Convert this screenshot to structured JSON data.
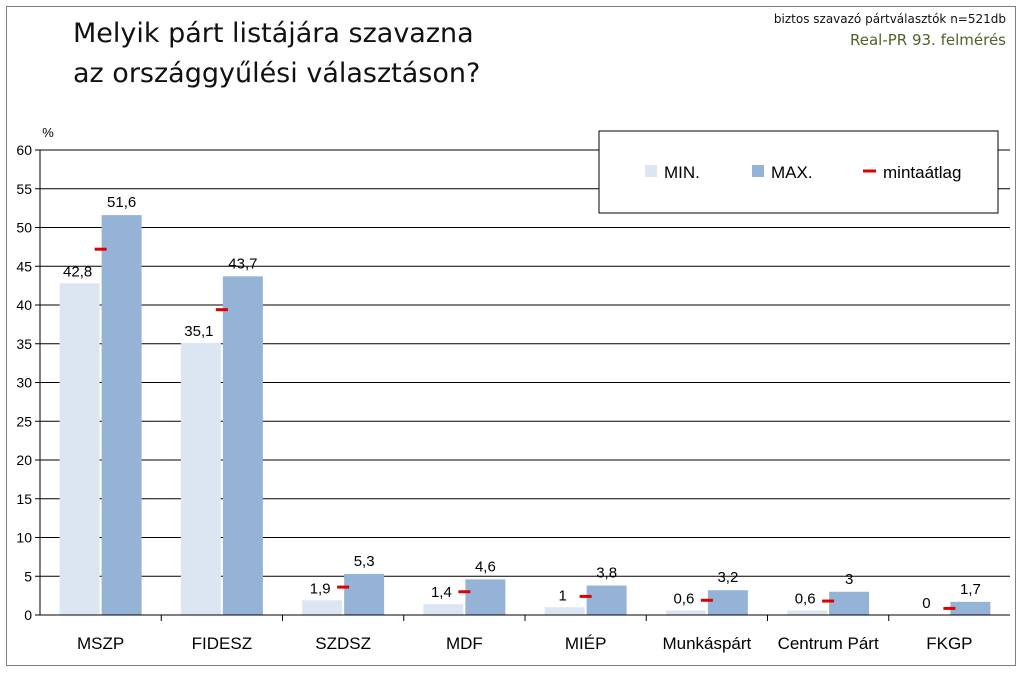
{
  "header": {
    "title": "Melyik párt listájára szavazna\naz országgyűlési választáson?",
    "source_line1": "biztos szavazó pártválasztók n=521db",
    "source_line2": "Real-PR 93. felmérés"
  },
  "colors": {
    "min": "#dce6f2",
    "max": "#95b3d7",
    "avg": "#e00000",
    "grid": "#000000"
  },
  "chart_data": {
    "type": "bar",
    "ylabel": "%",
    "ylim": [
      0,
      60
    ],
    "ytick_step": 5,
    "ytick_labels": [
      "0",
      "5",
      "10",
      "15",
      "20",
      "25",
      "30",
      "35",
      "40",
      "45",
      "50",
      "55",
      "60"
    ],
    "grid": true,
    "legend_position": "top-right",
    "categories": [
      "MSZP",
      "FIDESZ",
      "SZDSZ",
      "MDF",
      "MIÉP",
      "Munkáspárt",
      "Centrum Párt",
      "FKGP"
    ],
    "series": [
      {
        "name": "MIN.",
        "values": [
          42.8,
          35.1,
          1.9,
          1.4,
          1,
          0.6,
          0.6,
          0
        ],
        "labels": [
          "42,8",
          "35,1",
          "1,9",
          "1,4",
          "1",
          "0,6",
          "0,6",
          "0"
        ]
      },
      {
        "name": "MAX.",
        "values": [
          51.6,
          43.7,
          5.3,
          4.6,
          3.8,
          3.2,
          3,
          1.7
        ],
        "labels": [
          "51,6",
          "43,7",
          "5,3",
          "4,6",
          "3,8",
          "3,2",
          "3",
          "1,7"
        ]
      },
      {
        "name": "mintaátlag",
        "values": [
          47.2,
          39.4,
          3.6,
          3.0,
          2.4,
          1.9,
          1.8,
          0.85
        ]
      }
    ]
  }
}
